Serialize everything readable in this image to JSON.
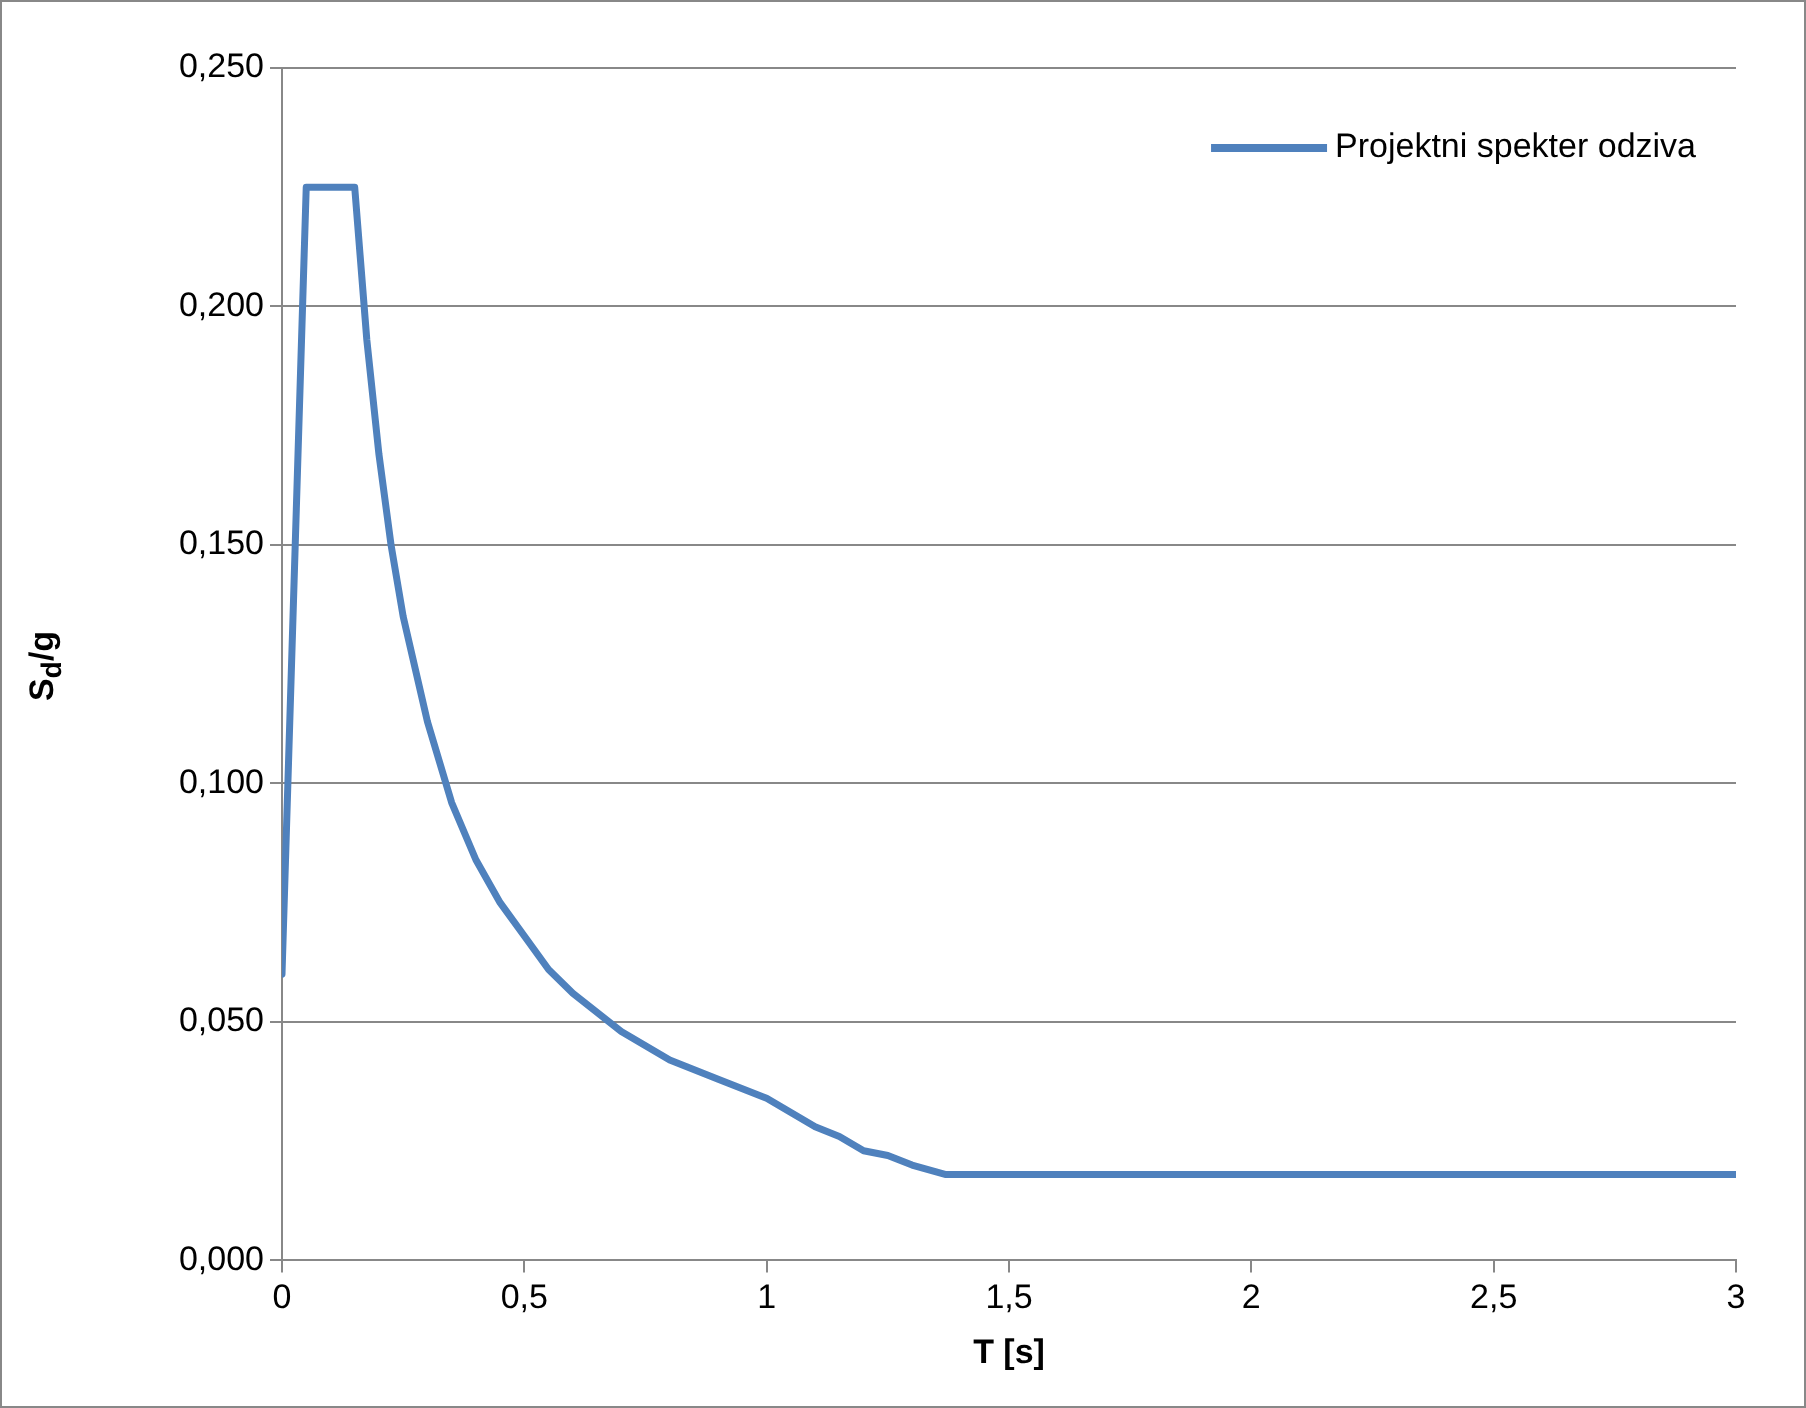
{
  "chart_data": {
    "type": "line",
    "xlabel": "T [s]",
    "ylabel": "S$_{d}$/g",
    "x": [
      0,
      0.05,
      0.15,
      0.175,
      0.2,
      0.225,
      0.25,
      0.3,
      0.35,
      0.4,
      0.45,
      0.5,
      0.55,
      0.6,
      0.7,
      0.8,
      0.9,
      1.0,
      1.05,
      1.1,
      1.15,
      1.2,
      1.25,
      1.3,
      1.37,
      3
    ],
    "series": [
      {
        "name": "Projektni spekter odziva",
        "color": "#4f81bd",
        "values": [
          0.06,
          0.225,
          0.225,
          0.193,
          0.169,
          0.15,
          0.135,
          0.113,
          0.096,
          0.084,
          0.075,
          0.068,
          0.061,
          0.056,
          0.048,
          0.042,
          0.038,
          0.034,
          0.031,
          0.028,
          0.026,
          0.023,
          0.022,
          0.02,
          0.018,
          0.018
        ]
      }
    ],
    "xlim": [
      0,
      3
    ],
    "xticks": [
      0,
      {
        "value": 0.5,
        "label": "0,5"
      },
      1,
      {
        "value": 1.5,
        "label": "1,5"
      },
      2,
      {
        "value": 2.5,
        "label": "2,5"
      },
      3
    ],
    "ylim": [
      0,
      0.25
    ],
    "yticks": [
      {
        "value": 0,
        "label": "0,000"
      },
      {
        "value": 0.05,
        "label": "0,050"
      },
      {
        "value": 0.1,
        "label": "0,100"
      },
      {
        "value": 0.15,
        "label": "0,150"
      },
      {
        "value": 0.2,
        "label": "0,200"
      },
      {
        "value": 0.25,
        "label": "0,250"
      }
    ],
    "grid": "y",
    "legend": "top right",
    "marker": "none",
    "line_style": "solid"
  }
}
